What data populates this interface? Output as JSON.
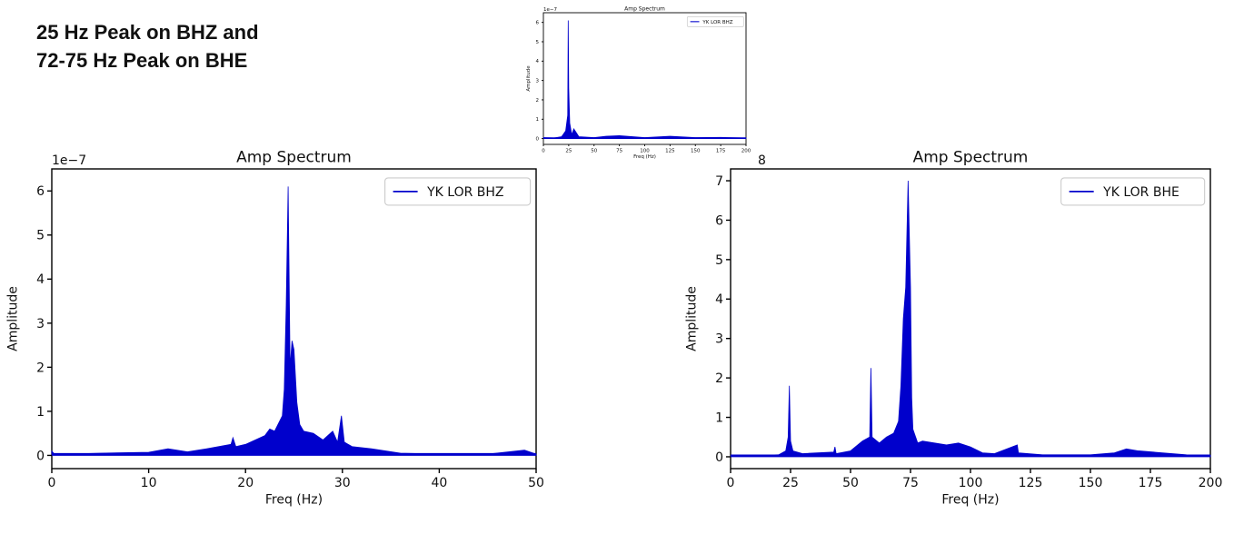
{
  "headline": {
    "line1": "25 Hz Peak on BHZ and",
    "line2": "72-75 Hz Peak on BHE"
  },
  "colors": {
    "series": "#0000cc",
    "axis": "#000000"
  },
  "chart_data": [
    {
      "id": "inset",
      "type": "line",
      "title": "Amp Spectrum",
      "xlabel": "Freq (Hz)",
      "ylabel": "Amplitude",
      "y_offset_label": "1e−7",
      "legend": "YK LOR BHZ",
      "legend_position": "top-right",
      "xlim": [
        0,
        200
      ],
      "ylim": [
        -0.3,
        6.5
      ],
      "xticks": [
        0,
        25,
        50,
        75,
        100,
        125,
        150,
        175,
        200
      ],
      "yticks": [
        0,
        1,
        2,
        3,
        4,
        5,
        6
      ],
      "series": [
        {
          "name": "YK LOR BHZ",
          "points": [
            [
              0,
              0.05
            ],
            [
              10,
              0.03
            ],
            [
              18,
              0.1
            ],
            [
              22,
              0.4
            ],
            [
              24,
              1.2
            ],
            [
              24.5,
              6.1
            ],
            [
              25,
              2.6
            ],
            [
              26,
              0.8
            ],
            [
              28,
              0.2
            ],
            [
              30,
              0.5
            ],
            [
              35,
              0.1
            ],
            [
              50,
              0.05
            ],
            [
              62,
              0.12
            ],
            [
              75,
              0.15
            ],
            [
              100,
              0.05
            ],
            [
              125,
              0.12
            ],
            [
              150,
              0.05
            ],
            [
              175,
              0.06
            ],
            [
              200,
              0.03
            ]
          ]
        }
      ]
    },
    {
      "id": "bhz",
      "type": "line",
      "title": "Amp Spectrum",
      "xlabel": "Freq (Hz)",
      "ylabel": "Amplitude",
      "y_offset_label": "1e−7",
      "legend": "YK LOR BHZ",
      "legend_position": "top-right",
      "xlim": [
        0,
        50
      ],
      "ylim": [
        -0.3,
        6.5
      ],
      "xticks": [
        0,
        10,
        20,
        30,
        40,
        50
      ],
      "yticks": [
        0,
        1,
        2,
        3,
        4,
        5,
        6
      ],
      "series": [
        {
          "name": "YK LOR BHZ",
          "points": [
            [
              0,
              0.1
            ],
            [
              0.3,
              0.02
            ],
            [
              5,
              0.05
            ],
            [
              10,
              0.07
            ],
            [
              12,
              0.15
            ],
            [
              14,
              0.08
            ],
            [
              16,
              0.15
            ],
            [
              18.5,
              0.25
            ],
            [
              18.7,
              0.4
            ],
            [
              19,
              0.2
            ],
            [
              20,
              0.25
            ],
            [
              22,
              0.45
            ],
            [
              22.5,
              0.6
            ],
            [
              23,
              0.55
            ],
            [
              23.8,
              0.9
            ],
            [
              24,
              1.5
            ],
            [
              24.2,
              3.4
            ],
            [
              24.4,
              6.1
            ],
            [
              24.6,
              2.0
            ],
            [
              24.8,
              2.6
            ],
            [
              25,
              2.4
            ],
            [
              25.3,
              1.2
            ],
            [
              25.6,
              0.7
            ],
            [
              26,
              0.55
            ],
            [
              27,
              0.5
            ],
            [
              28,
              0.35
            ],
            [
              29,
              0.55
            ],
            [
              29.5,
              0.3
            ],
            [
              29.9,
              0.9
            ],
            [
              30.2,
              0.3
            ],
            [
              31,
              0.2
            ],
            [
              33,
              0.15
            ],
            [
              36,
              0.05
            ],
            [
              40,
              0.03
            ],
            [
              45,
              0.03
            ],
            [
              48.8,
              0.12
            ],
            [
              50,
              0.03
            ]
          ]
        }
      ]
    },
    {
      "id": "bhe",
      "type": "line",
      "title": "Amp Spectrum",
      "xlabel": "Freq (Hz)",
      "ylabel": "Amplitude",
      "y_offset_label": "8",
      "legend": "YK LOR BHE",
      "legend_position": "top-right",
      "xlim": [
        0,
        200
      ],
      "ylim": [
        -0.3,
        7.3
      ],
      "xticks": [
        0,
        25,
        50,
        75,
        100,
        125,
        150,
        175,
        200
      ],
      "yticks": [
        0,
        1,
        2,
        3,
        4,
        5,
        6,
        7
      ],
      "series": [
        {
          "name": "YK LOR BHE",
          "points": [
            [
              0,
              0.02
            ],
            [
              20,
              0.05
            ],
            [
              23,
              0.15
            ],
            [
              24,
              0.5
            ],
            [
              24.5,
              1.8
            ],
            [
              25,
              0.4
            ],
            [
              26,
              0.15
            ],
            [
              30,
              0.08
            ],
            [
              43,
              0.12
            ],
            [
              43.5,
              0.25
            ],
            [
              44,
              0.08
            ],
            [
              50,
              0.15
            ],
            [
              55,
              0.4
            ],
            [
              58,
              0.5
            ],
            [
              58.5,
              2.25
            ],
            [
              59,
              0.5
            ],
            [
              62,
              0.35
            ],
            [
              65,
              0.5
            ],
            [
              68,
              0.6
            ],
            [
              70,
              0.9
            ],
            [
              71,
              1.8
            ],
            [
              72,
              3.5
            ],
            [
              73,
              4.3
            ],
            [
              74,
              7.0
            ],
            [
              75,
              4.3
            ],
            [
              75.5,
              1.5
            ],
            [
              76,
              0.7
            ],
            [
              78,
              0.35
            ],
            [
              80,
              0.4
            ],
            [
              85,
              0.35
            ],
            [
              90,
              0.3
            ],
            [
              95,
              0.35
            ],
            [
              100,
              0.25
            ],
            [
              105,
              0.1
            ],
            [
              110,
              0.08
            ],
            [
              119.5,
              0.3
            ],
            [
              120,
              0.1
            ],
            [
              130,
              0.05
            ],
            [
              150,
              0.05
            ],
            [
              160,
              0.1
            ],
            [
              165,
              0.2
            ],
            [
              170,
              0.15
            ],
            [
              180,
              0.1
            ],
            [
              190,
              0.05
            ],
            [
              200,
              0.04
            ]
          ]
        }
      ]
    }
  ]
}
